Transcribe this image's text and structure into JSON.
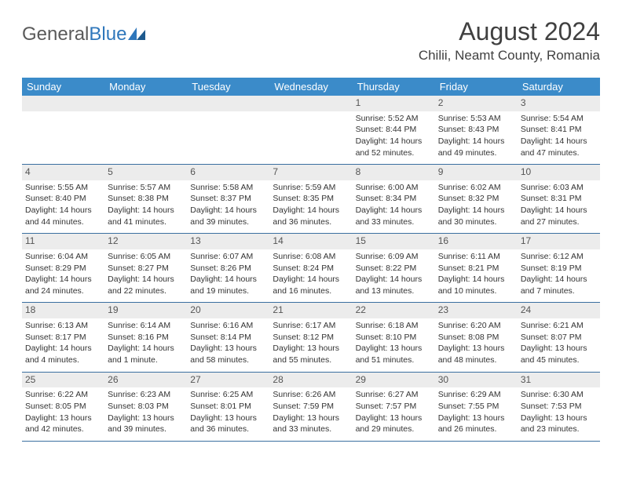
{
  "logo": {
    "text1": "General",
    "text2": "Blue"
  },
  "title": "August 2024",
  "location": "Chilii, Neamt County, Romania",
  "dow": [
    "Sunday",
    "Monday",
    "Tuesday",
    "Wednesday",
    "Thursday",
    "Friday",
    "Saturday"
  ],
  "colors": {
    "header_bg": "#3b8bc9",
    "header_text": "#ffffff",
    "daynum_bg": "#ececec",
    "rule": "#3b6fa0",
    "logo_gray": "#5a5a5a",
    "logo_blue": "#2f77bb"
  },
  "weeks": [
    [
      null,
      null,
      null,
      null,
      {
        "n": "1",
        "sr": "Sunrise: 5:52 AM",
        "ss": "Sunset: 8:44 PM",
        "d1": "Daylight: 14 hours",
        "d2": "and 52 minutes."
      },
      {
        "n": "2",
        "sr": "Sunrise: 5:53 AM",
        "ss": "Sunset: 8:43 PM",
        "d1": "Daylight: 14 hours",
        "d2": "and 49 minutes."
      },
      {
        "n": "3",
        "sr": "Sunrise: 5:54 AM",
        "ss": "Sunset: 8:41 PM",
        "d1": "Daylight: 14 hours",
        "d2": "and 47 minutes."
      }
    ],
    [
      {
        "n": "4",
        "sr": "Sunrise: 5:55 AM",
        "ss": "Sunset: 8:40 PM",
        "d1": "Daylight: 14 hours",
        "d2": "and 44 minutes."
      },
      {
        "n": "5",
        "sr": "Sunrise: 5:57 AM",
        "ss": "Sunset: 8:38 PM",
        "d1": "Daylight: 14 hours",
        "d2": "and 41 minutes."
      },
      {
        "n": "6",
        "sr": "Sunrise: 5:58 AM",
        "ss": "Sunset: 8:37 PM",
        "d1": "Daylight: 14 hours",
        "d2": "and 39 minutes."
      },
      {
        "n": "7",
        "sr": "Sunrise: 5:59 AM",
        "ss": "Sunset: 8:35 PM",
        "d1": "Daylight: 14 hours",
        "d2": "and 36 minutes."
      },
      {
        "n": "8",
        "sr": "Sunrise: 6:00 AM",
        "ss": "Sunset: 8:34 PM",
        "d1": "Daylight: 14 hours",
        "d2": "and 33 minutes."
      },
      {
        "n": "9",
        "sr": "Sunrise: 6:02 AM",
        "ss": "Sunset: 8:32 PM",
        "d1": "Daylight: 14 hours",
        "d2": "and 30 minutes."
      },
      {
        "n": "10",
        "sr": "Sunrise: 6:03 AM",
        "ss": "Sunset: 8:31 PM",
        "d1": "Daylight: 14 hours",
        "d2": "and 27 minutes."
      }
    ],
    [
      {
        "n": "11",
        "sr": "Sunrise: 6:04 AM",
        "ss": "Sunset: 8:29 PM",
        "d1": "Daylight: 14 hours",
        "d2": "and 24 minutes."
      },
      {
        "n": "12",
        "sr": "Sunrise: 6:05 AM",
        "ss": "Sunset: 8:27 PM",
        "d1": "Daylight: 14 hours",
        "d2": "and 22 minutes."
      },
      {
        "n": "13",
        "sr": "Sunrise: 6:07 AM",
        "ss": "Sunset: 8:26 PM",
        "d1": "Daylight: 14 hours",
        "d2": "and 19 minutes."
      },
      {
        "n": "14",
        "sr": "Sunrise: 6:08 AM",
        "ss": "Sunset: 8:24 PM",
        "d1": "Daylight: 14 hours",
        "d2": "and 16 minutes."
      },
      {
        "n": "15",
        "sr": "Sunrise: 6:09 AM",
        "ss": "Sunset: 8:22 PM",
        "d1": "Daylight: 14 hours",
        "d2": "and 13 minutes."
      },
      {
        "n": "16",
        "sr": "Sunrise: 6:11 AM",
        "ss": "Sunset: 8:21 PM",
        "d1": "Daylight: 14 hours",
        "d2": "and 10 minutes."
      },
      {
        "n": "17",
        "sr": "Sunrise: 6:12 AM",
        "ss": "Sunset: 8:19 PM",
        "d1": "Daylight: 14 hours",
        "d2": "and 7 minutes."
      }
    ],
    [
      {
        "n": "18",
        "sr": "Sunrise: 6:13 AM",
        "ss": "Sunset: 8:17 PM",
        "d1": "Daylight: 14 hours",
        "d2": "and 4 minutes."
      },
      {
        "n": "19",
        "sr": "Sunrise: 6:14 AM",
        "ss": "Sunset: 8:16 PM",
        "d1": "Daylight: 14 hours",
        "d2": "and 1 minute."
      },
      {
        "n": "20",
        "sr": "Sunrise: 6:16 AM",
        "ss": "Sunset: 8:14 PM",
        "d1": "Daylight: 13 hours",
        "d2": "and 58 minutes."
      },
      {
        "n": "21",
        "sr": "Sunrise: 6:17 AM",
        "ss": "Sunset: 8:12 PM",
        "d1": "Daylight: 13 hours",
        "d2": "and 55 minutes."
      },
      {
        "n": "22",
        "sr": "Sunrise: 6:18 AM",
        "ss": "Sunset: 8:10 PM",
        "d1": "Daylight: 13 hours",
        "d2": "and 51 minutes."
      },
      {
        "n": "23",
        "sr": "Sunrise: 6:20 AM",
        "ss": "Sunset: 8:08 PM",
        "d1": "Daylight: 13 hours",
        "d2": "and 48 minutes."
      },
      {
        "n": "24",
        "sr": "Sunrise: 6:21 AM",
        "ss": "Sunset: 8:07 PM",
        "d1": "Daylight: 13 hours",
        "d2": "and 45 minutes."
      }
    ],
    [
      {
        "n": "25",
        "sr": "Sunrise: 6:22 AM",
        "ss": "Sunset: 8:05 PM",
        "d1": "Daylight: 13 hours",
        "d2": "and 42 minutes."
      },
      {
        "n": "26",
        "sr": "Sunrise: 6:23 AM",
        "ss": "Sunset: 8:03 PM",
        "d1": "Daylight: 13 hours",
        "d2": "and 39 minutes."
      },
      {
        "n": "27",
        "sr": "Sunrise: 6:25 AM",
        "ss": "Sunset: 8:01 PM",
        "d1": "Daylight: 13 hours",
        "d2": "and 36 minutes."
      },
      {
        "n": "28",
        "sr": "Sunrise: 6:26 AM",
        "ss": "Sunset: 7:59 PM",
        "d1": "Daylight: 13 hours",
        "d2": "and 33 minutes."
      },
      {
        "n": "29",
        "sr": "Sunrise: 6:27 AM",
        "ss": "Sunset: 7:57 PM",
        "d1": "Daylight: 13 hours",
        "d2": "and 29 minutes."
      },
      {
        "n": "30",
        "sr": "Sunrise: 6:29 AM",
        "ss": "Sunset: 7:55 PM",
        "d1": "Daylight: 13 hours",
        "d2": "and 26 minutes."
      },
      {
        "n": "31",
        "sr": "Sunrise: 6:30 AM",
        "ss": "Sunset: 7:53 PM",
        "d1": "Daylight: 13 hours",
        "d2": "and 23 minutes."
      }
    ]
  ]
}
